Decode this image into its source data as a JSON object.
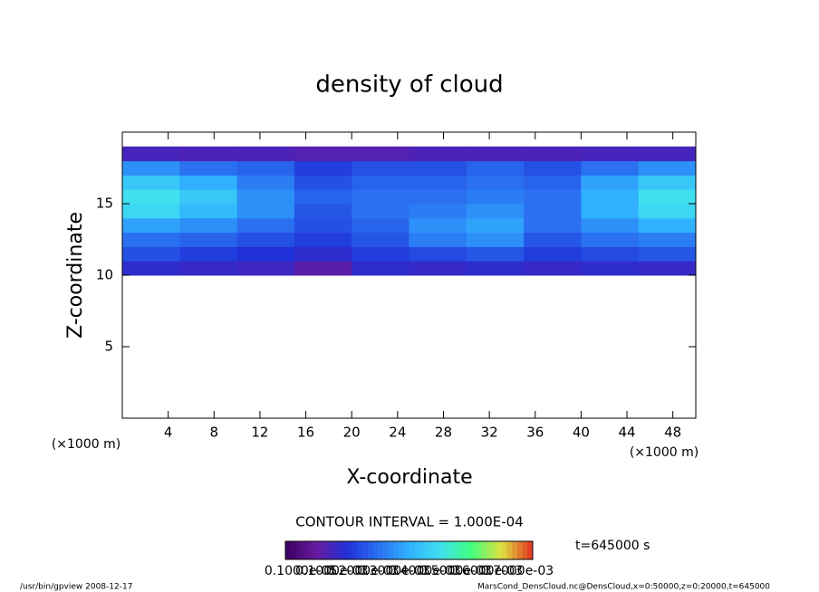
{
  "chart_data": {
    "type": "heatmap",
    "title": "density of cloud",
    "xlabel": "X-coordinate",
    "ylabel": "Z-coordinate",
    "xunit": "(×1000 m)",
    "yunit": "(×1000 m)",
    "contour_note": "CONTOUR INTERVAL = 1.000E-04",
    "time_note": "t=645000 s",
    "footer_left": "/usr/bin/gpview  2008-12-17",
    "footer_right": "MarsCond_DensCloud.nc@DensCloud,x=0:50000,z=0:20000,t=645000",
    "xlim": [
      0,
      50
    ],
    "ylim": [
      0,
      20
    ],
    "xticks": [
      4,
      8,
      12,
      16,
      20,
      24,
      28,
      32,
      36,
      40,
      44,
      48
    ],
    "yticks": [
      5,
      10,
      15
    ],
    "x": [
      2.5,
      7.5,
      12.5,
      17.5,
      22.5,
      27.5,
      32.5,
      37.5,
      42.5,
      47.5
    ],
    "y": [
      10.5,
      11.5,
      12.5,
      13.5,
      14.5,
      15.5,
      16.5,
      17.5,
      18.5
    ],
    "values": [
      [
        0.00018,
        0.00017,
        0.00016,
        0.00012,
        0.00018,
        0.00017,
        0.00018,
        0.00017,
        0.00018,
        0.00017
      ],
      [
        0.00025,
        0.00022,
        0.0002,
        0.00018,
        0.00022,
        0.00024,
        0.00026,
        0.00022,
        0.00024,
        0.00026
      ],
      [
        0.0003,
        0.00028,
        0.00025,
        0.00022,
        0.00026,
        0.00032,
        0.00035,
        0.00026,
        0.0003,
        0.00032
      ],
      [
        0.00038,
        0.00035,
        0.0003,
        0.00025,
        0.00028,
        0.00035,
        0.00038,
        0.0003,
        0.00035,
        0.0004
      ],
      [
        0.00048,
        0.00042,
        0.00035,
        0.00026,
        0.0003,
        0.00032,
        0.00035,
        0.0003,
        0.0004,
        0.00048
      ],
      [
        0.0005,
        0.00045,
        0.00035,
        0.00028,
        0.0003,
        0.0003,
        0.00032,
        0.0003,
        0.0004,
        0.0005
      ],
      [
        0.00045,
        0.0004,
        0.00032,
        0.00025,
        0.00028,
        0.00028,
        0.0003,
        0.00028,
        0.00038,
        0.00045
      ],
      [
        0.00035,
        0.0003,
        0.00028,
        0.00022,
        0.00025,
        0.00025,
        0.00028,
        0.00025,
        0.0003,
        0.00035
      ],
      [
        0.00015,
        0.00014,
        0.00014,
        0.00013,
        0.00013,
        0.00014,
        0.00014,
        0.00014,
        0.00015,
        0.00015
      ]
    ],
    "colormap": [
      [
        5e-05,
        "#3a0060"
      ],
      [
        0.0001,
        "#6a1aa0"
      ],
      [
        0.0002,
        "#2030d8"
      ],
      [
        0.0003,
        "#2a70f0"
      ],
      [
        0.0004,
        "#30b0ff"
      ],
      [
        0.0005,
        "#40e0f0"
      ],
      [
        0.0006,
        "#40ff80"
      ],
      [
        0.0007,
        "#e0e040"
      ],
      [
        0.0008,
        "#e03020"
      ]
    ],
    "colorbar_labels": [
      "0.1000e-05",
      "0.1000e-03",
      "0.2000e-03",
      "0.3000e-03",
      "0.4000e-03",
      "0.5000e-03",
      "0.6000e-03",
      "0.7000e-03"
    ]
  }
}
